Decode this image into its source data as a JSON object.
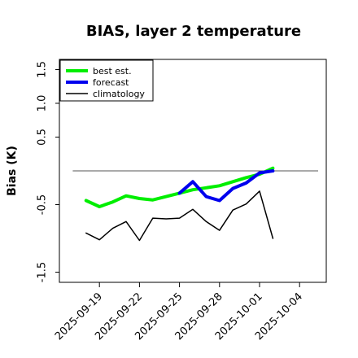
{
  "chart_data": {
    "type": "line",
    "title": "BIAS, layer 2 temperature",
    "xlabel": "",
    "ylabel": "Bias (K)",
    "ylim": [
      -1.65,
      1.65
    ],
    "yticks": [
      -1.5,
      -0.5,
      0.5,
      1.0,
      1.5
    ],
    "ytick_labels": [
      "-1.5",
      "-0.5",
      "0.5",
      "1.0",
      "1.5"
    ],
    "xticks": [
      "2025-09-19",
      "2025-09-22",
      "2025-09-25",
      "2025-09-28",
      "2025-10-01",
      "2025-10-04"
    ],
    "highlight_tick": "2025-09-25",
    "highlight_color": "#228b22",
    "x": [
      "2025-09-18",
      "2025-09-19",
      "2025-09-20",
      "2025-09-21",
      "2025-09-22",
      "2025-09-23",
      "2025-09-24",
      "2025-09-25",
      "2025-09-26",
      "2025-09-27",
      "2025-09-28",
      "2025-09-29",
      "2025-09-30",
      "2025-10-01",
      "2025-10-02"
    ],
    "reference_line": 0,
    "legend_position": "top-left",
    "grid": false,
    "series": [
      {
        "name": "best est.",
        "color": "#00ee00",
        "values": [
          -0.44,
          -0.53,
          -0.46,
          -0.37,
          -0.41,
          -0.43,
          -0.38,
          -0.33,
          -0.28,
          -0.25,
          -0.22,
          -0.16,
          -0.1,
          -0.05,
          0.04
        ]
      },
      {
        "name": "forecast",
        "color": "#0000ee",
        "values": [
          null,
          null,
          null,
          null,
          null,
          null,
          null,
          -0.33,
          -0.16,
          -0.38,
          -0.44,
          -0.26,
          -0.18,
          -0.03,
          0.0
        ]
      },
      {
        "name": "climatology",
        "color": "#000000",
        "values": [
          -0.92,
          -1.02,
          -0.85,
          -0.75,
          -1.03,
          -0.7,
          -0.71,
          -0.7,
          -0.57,
          -0.75,
          -0.88,
          -0.58,
          -0.49,
          -0.3,
          -1.0
        ]
      }
    ]
  }
}
